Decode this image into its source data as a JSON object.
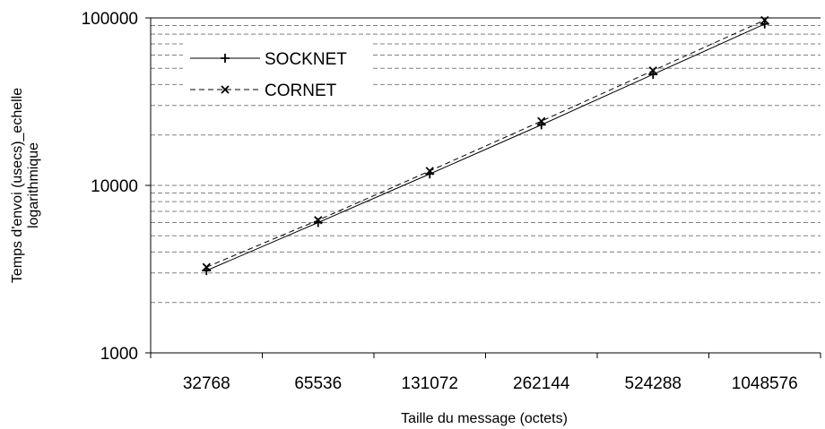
{
  "chart_data": {
    "type": "line",
    "title": "",
    "xlabel": "Taille du message (octets)",
    "ylabel_lines": [
      "Temps d'envoi (usecs)_echelle",
      "logarithmique"
    ],
    "yscale": "log",
    "ylim": [
      1000,
      100000
    ],
    "y_tick_labels": [
      "1000",
      "10000",
      "100000"
    ],
    "categories": [
      "32768",
      "65536",
      "131072",
      "262144",
      "524288",
      "1048576"
    ],
    "grid": "horizontal dashed minor gridlines",
    "legend_position": "top-left",
    "series": [
      {
        "name": "SOCKNET",
        "marker": "plus",
        "line_style": "solid",
        "values": [
          3100,
          6000,
          11700,
          23000,
          46000,
          92000
        ]
      },
      {
        "name": "CORNET",
        "marker": "x",
        "line_style": "dashed",
        "values": [
          3250,
          6200,
          12200,
          24200,
          48500,
          97000
        ]
      }
    ],
    "colors": {
      "line": "#000000",
      "grid": "#808080",
      "background": "#ffffff"
    }
  }
}
